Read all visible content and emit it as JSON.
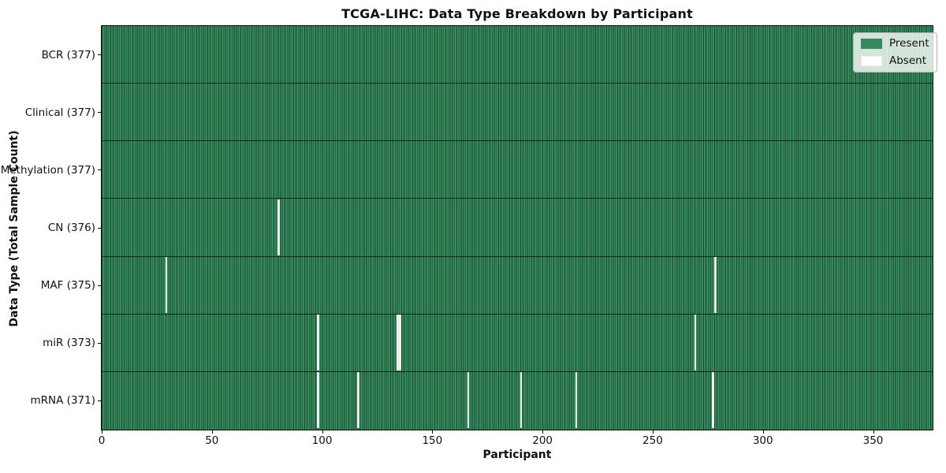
{
  "figure": {
    "background": "#ffffff"
  },
  "chart_data": {
    "type": "heatmap",
    "title": "TCGA-LIHC: Data Type Breakdown by Participant",
    "xlabel": "Participant",
    "ylabel": "Data Type (Total Sample Count)",
    "x_ticks": [
      0,
      50,
      100,
      150,
      200,
      250,
      300,
      350
    ],
    "x_range": [
      0,
      377
    ],
    "n_participants": 377,
    "grid": "cell-edges-on",
    "legend_position": "upper-right",
    "legend": {
      "entries": [
        {
          "label": "Present",
          "color": "#348a5b"
        },
        {
          "label": "Absent",
          "color": "#ffffff"
        }
      ]
    },
    "rows": [
      {
        "label": "BCR (377)",
        "data_type": "BCR",
        "present_count": 377,
        "absent_participants": []
      },
      {
        "label": "Clinical (377)",
        "data_type": "Clinical",
        "present_count": 377,
        "absent_participants": []
      },
      {
        "label": "Methylation (377)",
        "data_type": "Methylation",
        "present_count": 377,
        "absent_participants": []
      },
      {
        "label": "CN (376)",
        "data_type": "CN",
        "present_count": 376,
        "absent_participants": [
          80
        ]
      },
      {
        "label": "MAF (375)",
        "data_type": "MAF",
        "present_count": 375,
        "absent_participants": [
          29,
          278
        ]
      },
      {
        "label": "miR (373)",
        "data_type": "miR",
        "present_count": 373,
        "absent_participants": [
          98,
          134,
          135,
          269
        ]
      },
      {
        "label": "mRNA (371)",
        "data_type": "mRNA",
        "present_count": 371,
        "absent_participants": [
          98,
          116,
          166,
          190,
          215,
          277
        ]
      }
    ],
    "colors": {
      "present": "#348a5b",
      "cell_edge": "#1e4632",
      "absent": "#ffffff",
      "spine": "#0a0a0a",
      "text": "#111111"
    }
  }
}
